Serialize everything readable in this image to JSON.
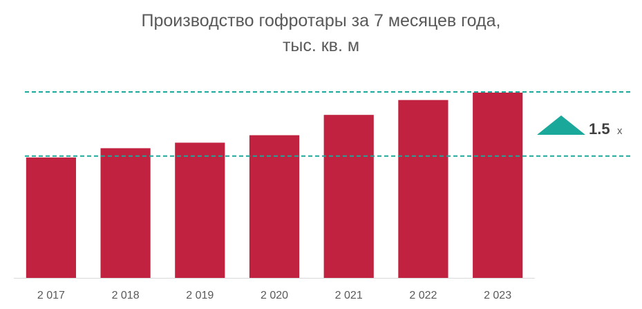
{
  "chart_data": {
    "type": "bar",
    "title": "Производство гофротары за 7 месяцев года,",
    "subtitle": "тыс. кв. м",
    "categories": [
      "2 017",
      "2 018",
      "2 019",
      "2 020",
      "2 021",
      "2 022",
      "2 023"
    ],
    "values": [
      0.65,
      0.7,
      0.73,
      0.77,
      0.88,
      0.96,
      1.0
    ],
    "ylim": [
      0,
      1.0
    ],
    "bar_color": "#c0223f",
    "reference_lines": {
      "color": "#1aa89a",
      "style": "dashed",
      "levels": [
        1.0,
        0.65
      ]
    },
    "annotation": {
      "value": "1.5",
      "unit": "х",
      "icon": "up-triangle-icon",
      "color": "#1aa89a"
    },
    "grid": false,
    "legend": "none"
  }
}
